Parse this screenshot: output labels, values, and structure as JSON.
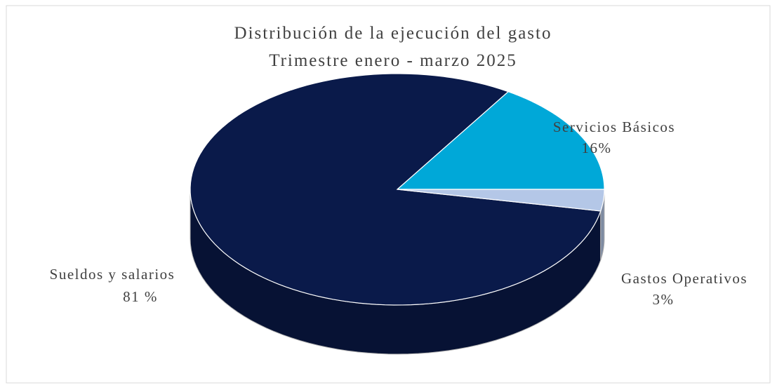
{
  "chart_data": {
    "type": "pie3d",
    "title": "Distribución de la ejecución del gasto",
    "subtitle": "Trimestre enero - marzo 2025",
    "categories": [
      "Servicios Básicos",
      "Sueldos y salarios",
      "Gastos Operativos"
    ],
    "values": [
      16,
      81,
      3
    ],
    "value_labels": [
      "16%",
      "81 %",
      "3%"
    ],
    "colors": [
      "#00a8d8",
      "#0a1a4a",
      "#b4c7e7"
    ]
  }
}
